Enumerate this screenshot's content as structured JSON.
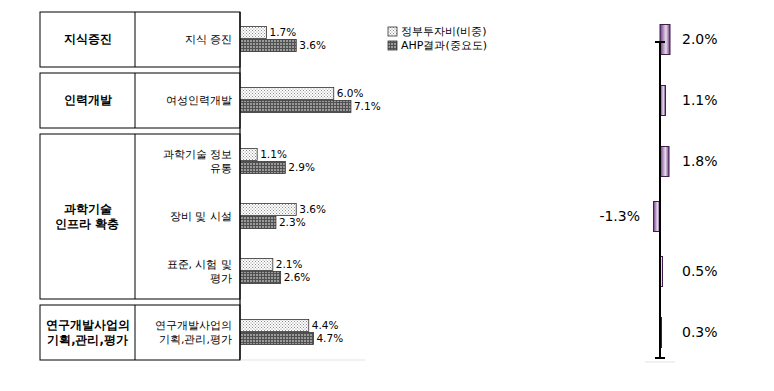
{
  "chart_data": [
    {
      "type": "bar",
      "orientation": "horizontal",
      "categories": [
        "지식 증진",
        "여성인력개발",
        "과학기술 정보\n유통",
        "장비 및 시설",
        "표준, 시험 및\n평가",
        "연구개발사업의\n기획,관리,평가"
      ],
      "category_groups": [
        {
          "label": "지식증진",
          "count": 1
        },
        {
          "label": "인력개발",
          "count": 1
        },
        {
          "label": "과학기술\n인프라 확충",
          "count": 3
        },
        {
          "label": "연구개발사업의\n기획,관리,평가",
          "count": 1
        }
      ],
      "series": [
        {
          "name": "정부투자비(비중)",
          "color": "#8c8c8c",
          "marker": "dots",
          "values": [
            1.7,
            6.0,
            1.1,
            3.6,
            2.1,
            4.4
          ],
          "value_labels": [
            "1.7%",
            "6.0%",
            "1.1%",
            "3.6%",
            "2.1%",
            "4.4%"
          ]
        },
        {
          "name": "AHP결과(중요도)",
          "color": "#505050",
          "marker": "crosshatch",
          "values": [
            3.6,
            7.1,
            2.9,
            2.3,
            2.6,
            4.7
          ],
          "value_labels": [
            "3.6%",
            "7.1%",
            "2.9%",
            "2.3%",
            "2.6%",
            "4.7%"
          ]
        }
      ],
      "xlim": [
        0,
        8
      ],
      "tick_labels": false,
      "data_labels": true,
      "legend": "top-right"
    },
    {
      "type": "bar",
      "orientation": "horizontal",
      "categories": [
        null,
        null,
        null,
        null,
        null,
        null
      ],
      "values": [
        2.0,
        1.1,
        1.8,
        -1.3,
        0.5,
        0.3
      ],
      "value_labels": [
        "2.0%",
        "1.1%",
        "1.8%",
        "-1.3%",
        "0.5%",
        "0.3%"
      ],
      "color": "#6b3a7d",
      "xlim": [
        -3,
        3
      ],
      "tick_labels": false,
      "data_labels": true
    }
  ]
}
